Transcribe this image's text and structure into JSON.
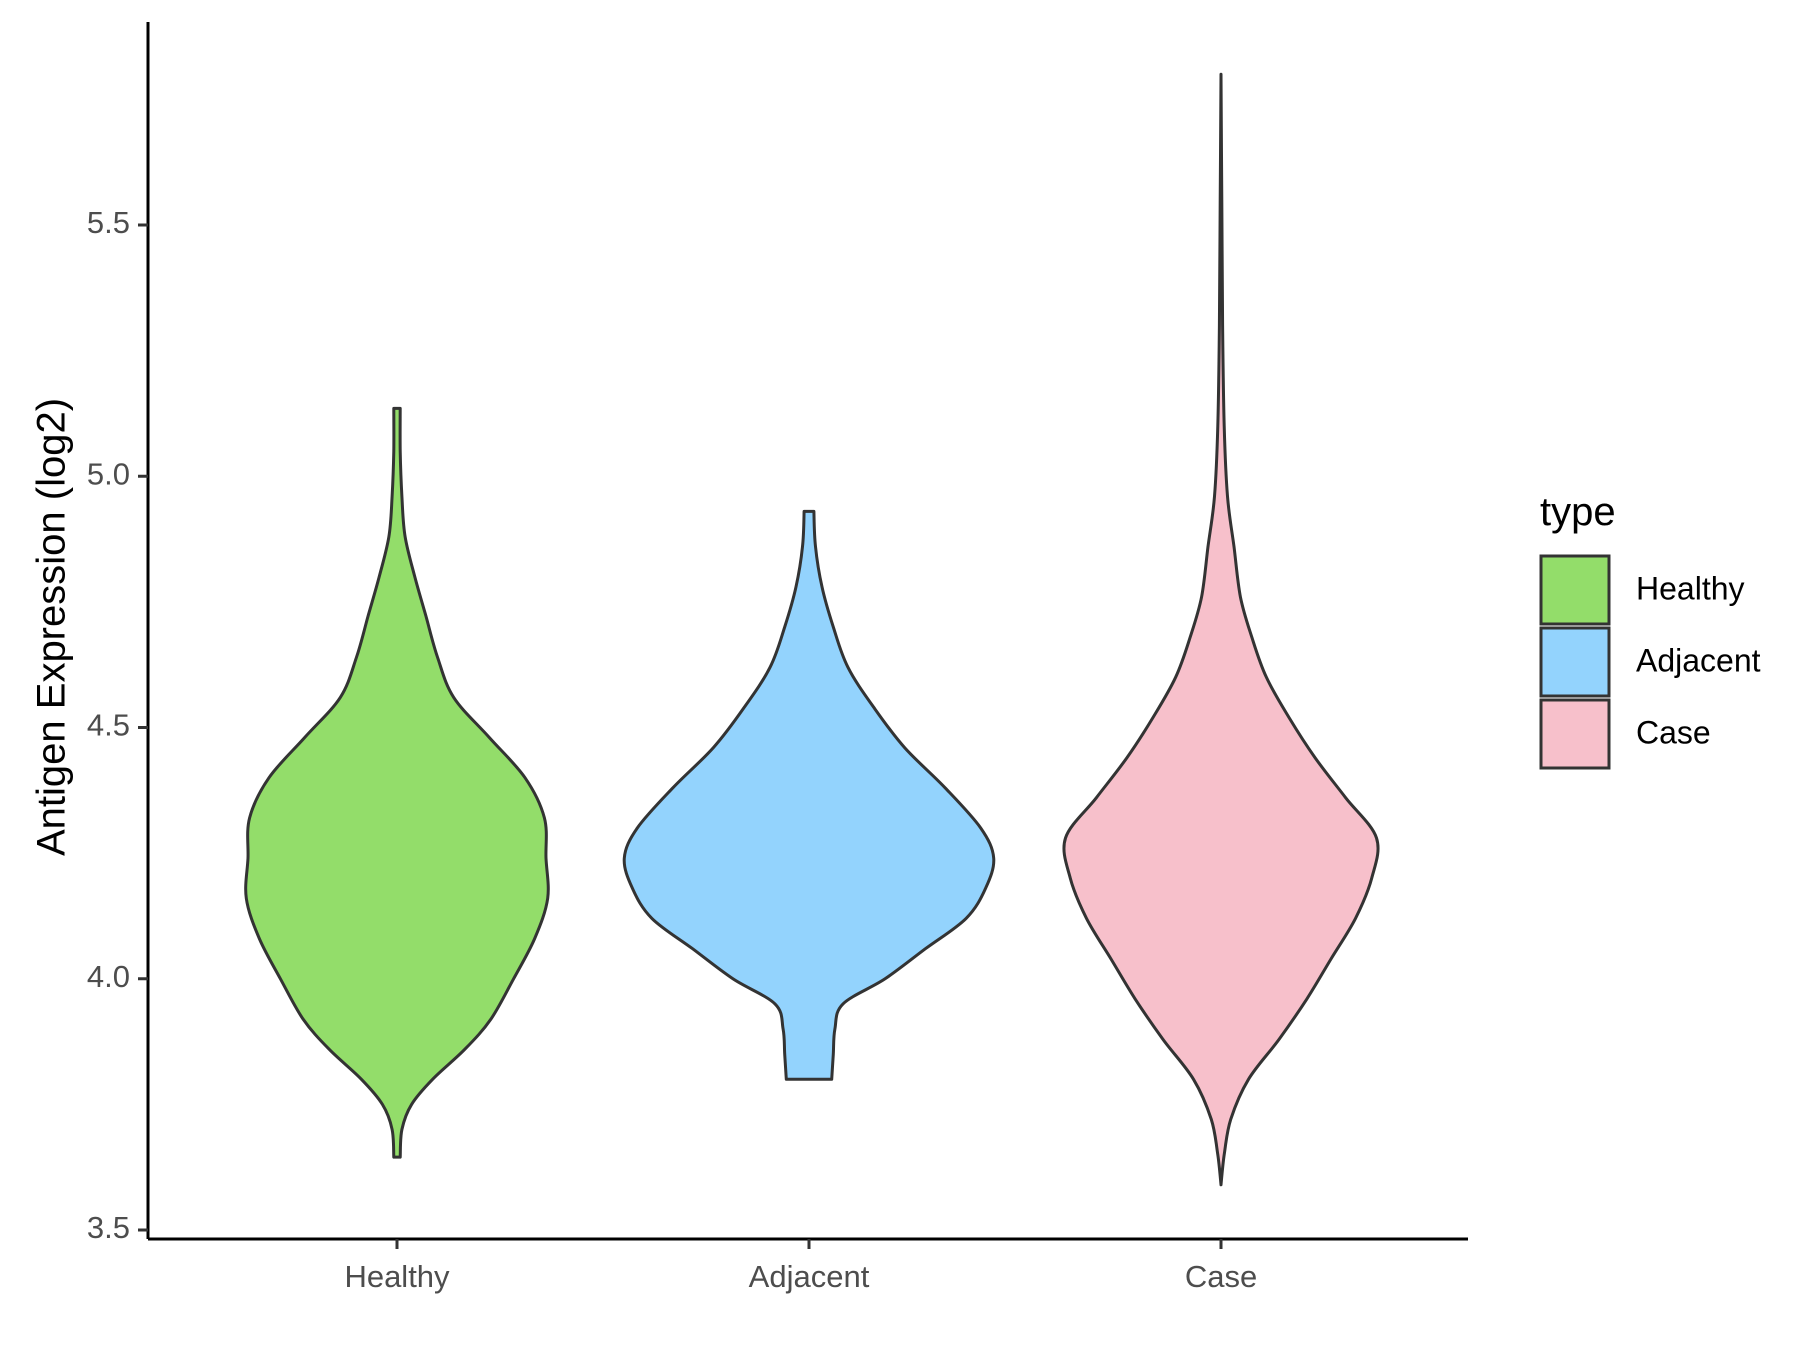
{
  "chart_data": {
    "type": "violin",
    "title": "",
    "xlabel": "",
    "ylabel": "Antigen Expression (log2)",
    "ylim": [
      3.48,
      5.9
    ],
    "yticks": [
      3.5,
      4.0,
      4.5,
      5.0,
      5.5
    ],
    "ytick_labels": [
      "3.5",
      "4.0",
      "4.5",
      "5.0",
      "5.5"
    ],
    "categories": [
      "Healthy",
      "Adjacent",
      "Case"
    ],
    "grid": false,
    "legend": {
      "title": "type",
      "position": "right",
      "entries": [
        {
          "label": "Healthy",
          "color": "#93dd6a"
        },
        {
          "label": "Adjacent",
          "color": "#93d3fd"
        },
        {
          "label": "Case",
          "color": "#f7c0cb"
        }
      ]
    },
    "series": [
      {
        "category": "Healthy",
        "color": "#93dd6a",
        "min": 3.645,
        "max": 5.135,
        "density_profile": [
          [
            3.645,
            0.02
          ],
          [
            3.7,
            0.03
          ],
          [
            3.75,
            0.09
          ],
          [
            3.8,
            0.22
          ],
          [
            3.86,
            0.42
          ],
          [
            3.92,
            0.58
          ],
          [
            4.0,
            0.72
          ],
          [
            4.08,
            0.85
          ],
          [
            4.16,
            0.93
          ],
          [
            4.24,
            0.92
          ],
          [
            4.32,
            0.91
          ],
          [
            4.4,
            0.79
          ],
          [
            4.48,
            0.57
          ],
          [
            4.56,
            0.35
          ],
          [
            4.64,
            0.25
          ],
          [
            4.72,
            0.18
          ],
          [
            4.8,
            0.11
          ],
          [
            4.88,
            0.05
          ],
          [
            4.96,
            0.03
          ],
          [
            5.05,
            0.02
          ],
          [
            5.135,
            0.02
          ]
        ]
      },
      {
        "category": "Adjacent",
        "color": "#93d3fd",
        "min": 3.8,
        "max": 4.93,
        "density_profile": [
          [
            3.8,
            0.14
          ],
          [
            3.85,
            0.15
          ],
          [
            3.9,
            0.16
          ],
          [
            3.95,
            0.21
          ],
          [
            4.0,
            0.47
          ],
          [
            4.06,
            0.72
          ],
          [
            4.12,
            0.97
          ],
          [
            4.18,
            1.09
          ],
          [
            4.24,
            1.14
          ],
          [
            4.3,
            1.06
          ],
          [
            4.38,
            0.84
          ],
          [
            4.46,
            0.59
          ],
          [
            4.54,
            0.4
          ],
          [
            4.62,
            0.24
          ],
          [
            4.7,
            0.15
          ],
          [
            4.78,
            0.08
          ],
          [
            4.86,
            0.04
          ],
          [
            4.93,
            0.03
          ]
        ]
      },
      {
        "category": "Case",
        "color": "#f7c0cb",
        "min": 3.59,
        "max": 5.8,
        "density_profile": [
          [
            3.59,
            0.0
          ],
          [
            3.65,
            0.02
          ],
          [
            3.72,
            0.06
          ],
          [
            3.8,
            0.17
          ],
          [
            3.88,
            0.36
          ],
          [
            3.96,
            0.53
          ],
          [
            4.04,
            0.68
          ],
          [
            4.12,
            0.83
          ],
          [
            4.2,
            0.93
          ],
          [
            4.28,
            0.96
          ],
          [
            4.36,
            0.77
          ],
          [
            4.44,
            0.58
          ],
          [
            4.52,
            0.42
          ],
          [
            4.6,
            0.28
          ],
          [
            4.68,
            0.19
          ],
          [
            4.76,
            0.12
          ],
          [
            4.86,
            0.08
          ],
          [
            4.96,
            0.04
          ],
          [
            5.1,
            0.02
          ],
          [
            5.3,
            0.01
          ],
          [
            5.55,
            0.005
          ],
          [
            5.8,
            0.0
          ]
        ]
      }
    ]
  }
}
